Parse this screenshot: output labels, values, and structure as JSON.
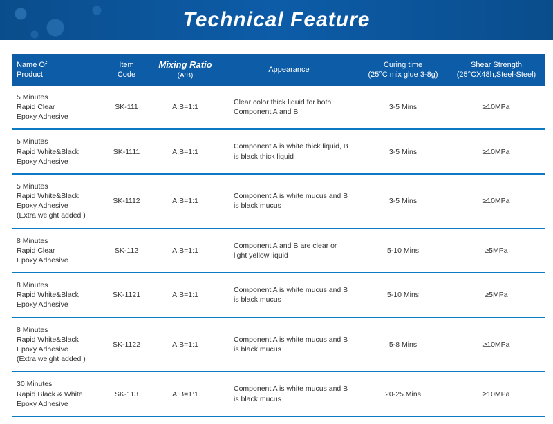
{
  "header": {
    "title": "Technical Feature"
  },
  "colors": {
    "header_bg": "#0d5ca8",
    "header_text": "#ffffff",
    "row_border": "#0d7ac4",
    "cell_text": "#333333"
  },
  "table": {
    "columns": [
      {
        "key": "name",
        "label": "Name Of\nProduct"
      },
      {
        "key": "code",
        "label": "Item\nCode"
      },
      {
        "key": "mix",
        "label_top": "Mixing Ratio",
        "label_sub": "(A:B)"
      },
      {
        "key": "app",
        "label": "Appearance"
      },
      {
        "key": "cure",
        "label": "Curing time\n(25°C mix glue 3-8g)"
      },
      {
        "key": "shear",
        "label": "Shear Strength\n(25°CX48h,Steel-Steel)"
      }
    ],
    "rows": [
      {
        "name": "5 Minutes\nRapid Clear\nEpoxy Adhesive",
        "code": "SK-111",
        "mix": "A:B=1:1",
        "app": "Clear color thick liquid for both Component A and B",
        "cure": "3-5 Mins",
        "shear": "≥10MPa"
      },
      {
        "name": "5 Minutes\nRapid White&Black\nEpoxy Adhesive",
        "code": "SK-1111",
        "mix": "A:B=1:1",
        "app": "Component A is white thick liquid, B is black thick liquid",
        "cure": "3-5 Mins",
        "shear": "≥10MPa"
      },
      {
        "name": "5 Minutes\nRapid White&Black\nEpoxy Adhesive\n(Extra weight added )",
        "code": "SK-1112",
        "mix": "A:B=1:1",
        "app": "Component A is white mucus and B is black mucus",
        "cure": "3-5 Mins",
        "shear": "≥10MPa"
      },
      {
        "name": "8 Minutes\nRapid Clear\nEpoxy Adhesive",
        "code": "SK-112",
        "mix": "A:B=1:1",
        "app": "Component A and B are clear or light yellow liquid",
        "cure": "5-10 Mins",
        "shear": "≥5MPa"
      },
      {
        "name": "8 Minutes\nRapid White&Black\nEpoxy Adhesive",
        "code": "SK-1121",
        "mix": "A:B=1:1",
        "app": "Component A is white mucus and B is black mucus",
        "cure": "5-10 Mins",
        "shear": "≥5MPa"
      },
      {
        "name": "8 Minutes\nRapid White&Black\nEpoxy Adhesive\n(Extra weight added )",
        "code": "SK-1122",
        "mix": "A:B=1:1",
        "app": "Component A is white mucus and B is black mucus",
        "cure": "5-8 Mins",
        "shear": "≥10MPa"
      },
      {
        "name": "30 Minutes\nRapid Black & White\nEpoxy Adhesive",
        "code": "SK-113",
        "mix": "A:B=1:1",
        "app": "Component A is white mucus and B is black mucus",
        "cure": "20-25 Mins",
        "shear": "≥10MPa"
      }
    ]
  }
}
